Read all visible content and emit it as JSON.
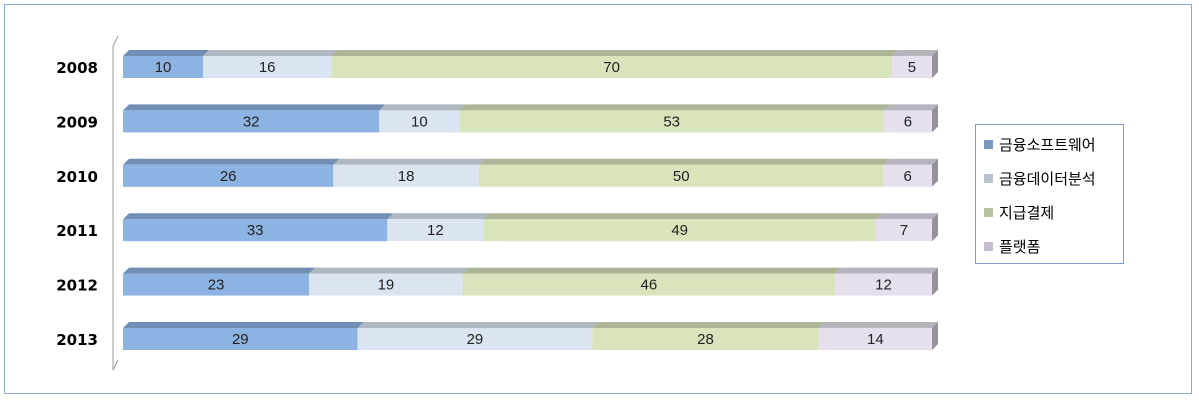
{
  "chart_data": {
    "type": "bar",
    "orientation": "horizontal",
    "stacked": true,
    "stacked_percent": true,
    "categories": [
      "2008",
      "2009",
      "2010",
      "2011",
      "2012",
      "2013"
    ],
    "series": [
      {
        "name": "금융소프트웨어",
        "values": [
          10,
          32,
          26,
          33,
          23,
          29
        ],
        "color": "#8db3e2"
      },
      {
        "name": "금융데이터분석",
        "values": [
          16,
          10,
          18,
          12,
          19,
          29
        ],
        "color": "#dbe5f1"
      },
      {
        "name": "지급결제",
        "values": [
          70,
          53,
          50,
          49,
          46,
          28
        ],
        "color": "#d7e4bc"
      },
      {
        "name": "플랫폼",
        "values": [
          5,
          6,
          6,
          7,
          12,
          14
        ],
        "color": "#e5e0ec"
      }
    ],
    "title": "",
    "xlabel": "",
    "ylabel": "",
    "legend_position": "right",
    "grid": false
  }
}
